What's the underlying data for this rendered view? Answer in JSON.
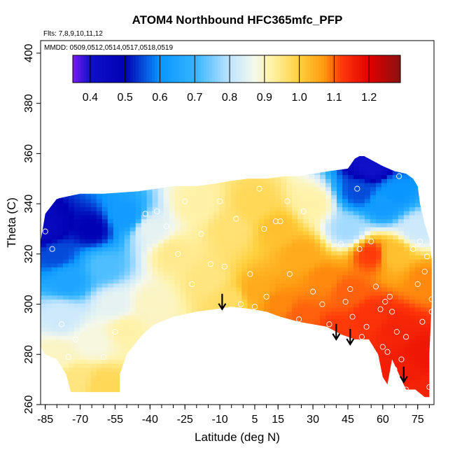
{
  "chart_data": {
    "type": "heatmap",
    "title": "ATOM4 Northbound HFC365mfc_PFP",
    "flights_note": "Flts: 7,8,9,10,11,12",
    "dates_note": "MMDD: 0509,0512,0514,0517,0518,0519",
    "xlabel": "Latitude (deg N)",
    "ylabel": "Theta (C)",
    "xlim": [
      -87,
      82
    ],
    "ylim": [
      260,
      405
    ],
    "x_ticks": [
      -85,
      -70,
      -55,
      -40,
      -25,
      -10,
      5,
      15,
      30,
      45,
      60,
      75
    ],
    "y_ticks": [
      260,
      280,
      300,
      320,
      340,
      360,
      380,
      400
    ],
    "colorbar": {
      "range": [
        0.35,
        1.29
      ],
      "ticks": [
        0.4,
        0.5,
        0.6,
        0.7,
        0.8,
        0.9,
        1.0,
        1.1,
        1.2
      ],
      "tick_labels": [
        "0.4",
        "0.5",
        "0.6",
        "0.7",
        "0.8",
        "0.9",
        "1.0",
        "1.1",
        "1.2"
      ],
      "stops": [
        {
          "v": 0.35,
          "color": "#7a1cf0"
        },
        {
          "v": 0.4,
          "color": "#1010c8"
        },
        {
          "v": 0.5,
          "color": "#0000b4"
        },
        {
          "v": 0.6,
          "color": "#0a96ff"
        },
        {
          "v": 0.7,
          "color": "#33b4ff"
        },
        {
          "v": 0.8,
          "color": "#bfe4ff"
        },
        {
          "v": 0.87,
          "color": "#f4f8ec"
        },
        {
          "v": 0.92,
          "color": "#fff2a8"
        },
        {
          "v": 1.0,
          "color": "#ffcf3c"
        },
        {
          "v": 1.07,
          "color": "#ff9c10"
        },
        {
          "v": 1.12,
          "color": "#ff3a0a"
        },
        {
          "v": 1.2,
          "color": "#e30000"
        },
        {
          "v": 1.29,
          "color": "#8c1010"
        }
      ]
    },
    "field_anchors": [
      {
        "lat": -85,
        "theta": 330,
        "value": 0.45
      },
      {
        "lat": -80,
        "theta": 320,
        "value": 0.55
      },
      {
        "lat": -75,
        "theta": 310,
        "value": 0.65
      },
      {
        "lat": -78,
        "theta": 295,
        "value": 0.82
      },
      {
        "lat": -80,
        "theta": 280,
        "value": 0.9
      },
      {
        "lat": -72,
        "theta": 270,
        "value": 0.95
      },
      {
        "lat": -60,
        "theta": 268,
        "value": 0.98
      },
      {
        "lat": -65,
        "theta": 285,
        "value": 0.88
      },
      {
        "lat": -65,
        "theta": 330,
        "value": 0.5
      },
      {
        "lat": -60,
        "theta": 315,
        "value": 0.72
      },
      {
        "lat": -55,
        "theta": 300,
        "value": 0.85
      },
      {
        "lat": -50,
        "theta": 290,
        "value": 0.92
      },
      {
        "lat": -50,
        "theta": 335,
        "value": 0.62
      },
      {
        "lat": -40,
        "theta": 330,
        "value": 0.85
      },
      {
        "lat": -40,
        "theta": 300,
        "value": 0.9
      },
      {
        "lat": -30,
        "theta": 320,
        "value": 0.94
      },
      {
        "lat": -20,
        "theta": 340,
        "value": 0.92
      },
      {
        "lat": -15,
        "theta": 310,
        "value": 0.95
      },
      {
        "lat": -5,
        "theta": 330,
        "value": 0.96
      },
      {
        "lat": -5,
        "theta": 302,
        "value": 0.97
      },
      {
        "lat": 5,
        "theta": 340,
        "value": 0.98
      },
      {
        "lat": 5,
        "theta": 305,
        "value": 1.05
      },
      {
        "lat": 15,
        "theta": 330,
        "value": 1.02
      },
      {
        "lat": 15,
        "theta": 300,
        "value": 1.08
      },
      {
        "lat": 25,
        "theta": 320,
        "value": 1.05
      },
      {
        "lat": 25,
        "theta": 295,
        "value": 1.1
      },
      {
        "lat": 30,
        "theta": 340,
        "value": 0.92
      },
      {
        "lat": 35,
        "theta": 310,
        "value": 1.08
      },
      {
        "lat": 40,
        "theta": 290,
        "value": 1.12
      },
      {
        "lat": 45,
        "theta": 330,
        "value": 0.78
      },
      {
        "lat": 45,
        "theta": 305,
        "value": 1.1
      },
      {
        "lat": 50,
        "theta": 345,
        "value": 0.55
      },
      {
        "lat": 55,
        "theta": 355,
        "value": 0.4
      },
      {
        "lat": 55,
        "theta": 320,
        "value": 1.12
      },
      {
        "lat": 55,
        "theta": 295,
        "value": 1.13
      },
      {
        "lat": 60,
        "theta": 340,
        "value": 0.62
      },
      {
        "lat": 65,
        "theta": 345,
        "value": 0.6
      },
      {
        "lat": 65,
        "theta": 320,
        "value": 1.02
      },
      {
        "lat": 65,
        "theta": 290,
        "value": 1.15
      },
      {
        "lat": 70,
        "theta": 275,
        "value": 1.16
      },
      {
        "lat": 75,
        "theta": 330,
        "value": 0.82
      },
      {
        "lat": 78,
        "theta": 310,
        "value": 1.08
      },
      {
        "lat": 78,
        "theta": 280,
        "value": 1.17
      },
      {
        "lat": 78,
        "theta": 265,
        "value": 1.15
      }
    ],
    "sample_points": [
      {
        "lat": -85,
        "theta": 329
      },
      {
        "lat": -82,
        "theta": 322
      },
      {
        "lat": -80,
        "theta": 343
      },
      {
        "lat": -78,
        "theta": 292
      },
      {
        "lat": -75,
        "theta": 279
      },
      {
        "lat": -72,
        "theta": 286
      },
      {
        "lat": -60,
        "theta": 279
      },
      {
        "lat": -55,
        "theta": 289
      },
      {
        "lat": -42,
        "theta": 336
      },
      {
        "lat": -37,
        "theta": 337
      },
      {
        "lat": -33,
        "theta": 331
      },
      {
        "lat": -28,
        "theta": 320
      },
      {
        "lat": -25,
        "theta": 341
      },
      {
        "lat": -22,
        "theta": 308
      },
      {
        "lat": -18,
        "theta": 328
      },
      {
        "lat": -14,
        "theta": 316
      },
      {
        "lat": -10,
        "theta": 341
      },
      {
        "lat": -8,
        "theta": 315
      },
      {
        "lat": -3,
        "theta": 334
      },
      {
        "lat": -1,
        "theta": 300
      },
      {
        "lat": 3,
        "theta": 312
      },
      {
        "lat": 5,
        "theta": 299
      },
      {
        "lat": 7,
        "theta": 346
      },
      {
        "lat": 9,
        "theta": 330
      },
      {
        "lat": 10,
        "theta": 303
      },
      {
        "lat": 14,
        "theta": 333
      },
      {
        "lat": 16,
        "theta": 333
      },
      {
        "lat": 19,
        "theta": 341
      },
      {
        "lat": 20,
        "theta": 312
      },
      {
        "lat": 24,
        "theta": 294
      },
      {
        "lat": 26,
        "theta": 337
      },
      {
        "lat": 30,
        "theta": 305
      },
      {
        "lat": 34,
        "theta": 300
      },
      {
        "lat": 37,
        "theta": 292
      },
      {
        "lat": 40,
        "theta": 287
      },
      {
        "lat": 42,
        "theta": 324
      },
      {
        "lat": 44,
        "theta": 301
      },
      {
        "lat": 46,
        "theta": 306
      },
      {
        "lat": 47,
        "theta": 295
      },
      {
        "lat": 49,
        "theta": 346
      },
      {
        "lat": 50,
        "theta": 322
      },
      {
        "lat": 51,
        "theta": 287
      },
      {
        "lat": 53,
        "theta": 291
      },
      {
        "lat": 55,
        "theta": 325
      },
      {
        "lat": 57,
        "theta": 307
      },
      {
        "lat": 59,
        "theta": 298
      },
      {
        "lat": 60,
        "theta": 283
      },
      {
        "lat": 61,
        "theta": 301
      },
      {
        "lat": 62,
        "theta": 281
      },
      {
        "lat": 63,
        "theta": 303
      },
      {
        "lat": 64,
        "theta": 297
      },
      {
        "lat": 65,
        "theta": 274
      },
      {
        "lat": 66,
        "theta": 289
      },
      {
        "lat": 67,
        "theta": 351
      },
      {
        "lat": 68,
        "theta": 278
      },
      {
        "lat": 70,
        "theta": 266
      },
      {
        "lat": 70,
        "theta": 287
      },
      {
        "lat": 73,
        "theta": 322
      },
      {
        "lat": 75,
        "theta": 308
      },
      {
        "lat": 76,
        "theta": 325
      },
      {
        "lat": 77,
        "theta": 293
      },
      {
        "lat": 78,
        "theta": 313
      },
      {
        "lat": 79,
        "theta": 319
      },
      {
        "lat": 80,
        "theta": 267
      },
      {
        "lat": 81,
        "theta": 297
      },
      {
        "lat": 81,
        "theta": 302
      }
    ],
    "arrows": [
      {
        "lat": -9,
        "theta": 298
      },
      {
        "lat": 40,
        "theta": 286
      },
      {
        "lat": 46,
        "theta": 284
      },
      {
        "lat": 69,
        "theta": 269
      }
    ],
    "coverage_polygon": [
      [
        -87,
        325
      ],
      [
        -85,
        336
      ],
      [
        -80,
        342
      ],
      [
        -75,
        343
      ],
      [
        -70,
        344
      ],
      [
        -60,
        344
      ],
      [
        -45,
        345
      ],
      [
        -30,
        347
      ],
      [
        -20,
        347
      ],
      [
        -12,
        348
      ],
      [
        -6,
        349
      ],
      [
        2,
        350
      ],
      [
        10,
        350
      ],
      [
        18,
        351
      ],
      [
        24,
        351
      ],
      [
        30,
        352
      ],
      [
        37,
        353
      ],
      [
        45,
        354
      ],
      [
        48,
        358
      ],
      [
        50,
        359
      ],
      [
        52,
        359
      ],
      [
        56,
        357
      ],
      [
        60,
        355
      ],
      [
        65,
        353
      ],
      [
        70,
        352
      ],
      [
        73,
        350
      ],
      [
        75,
        347
      ],
      [
        76,
        340
      ],
      [
        78,
        332
      ],
      [
        80,
        326
      ],
      [
        81,
        318
      ],
      [
        81,
        300
      ],
      [
        80,
        280
      ],
      [
        80,
        263
      ],
      [
        78,
        263
      ],
      [
        74,
        266
      ],
      [
        70,
        266
      ],
      [
        68,
        270
      ],
      [
        66,
        274
      ],
      [
        64,
        278
      ],
      [
        62,
        268
      ],
      [
        60,
        271
      ],
      [
        58,
        280
      ],
      [
        54,
        286
      ],
      [
        48,
        286
      ],
      [
        42,
        288
      ],
      [
        36,
        291
      ],
      [
        30,
        292
      ],
      [
        24,
        293
      ],
      [
        16,
        295
      ],
      [
        10,
        297
      ],
      [
        4,
        298
      ],
      [
        -5,
        299
      ],
      [
        -12,
        298
      ],
      [
        -20,
        297
      ],
      [
        -30,
        295
      ],
      [
        -38,
        292
      ],
      [
        -42,
        289
      ],
      [
        -45,
        286
      ],
      [
        -50,
        280
      ],
      [
        -53,
        272
      ],
      [
        -53,
        265
      ],
      [
        -74,
        265
      ],
      [
        -76,
        272
      ],
      [
        -80,
        278
      ],
      [
        -85,
        280
      ],
      [
        -87,
        283
      ]
    ]
  }
}
